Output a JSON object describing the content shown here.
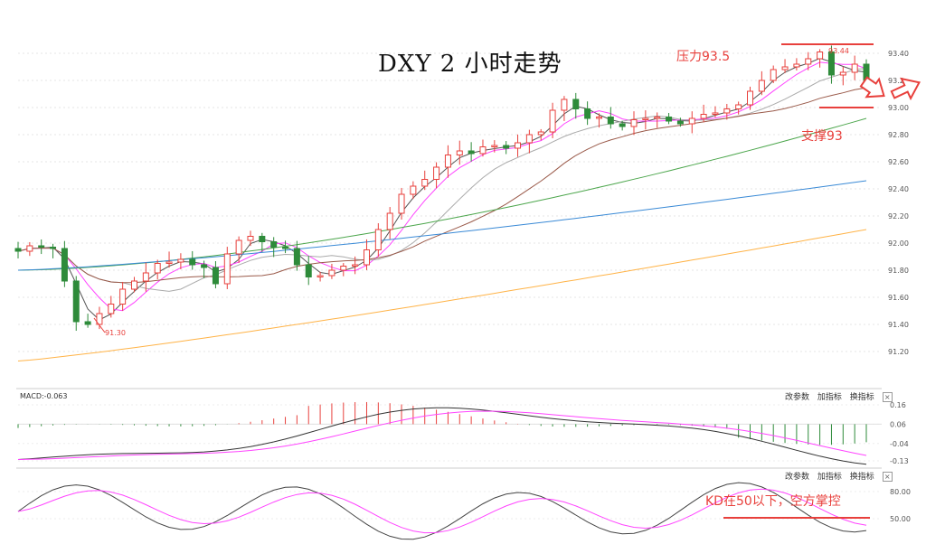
{
  "title": "DXY 2 小时走势",
  "annotations": {
    "resistance": "压力93.5",
    "support": "支撑93",
    "kd_note": "KD在50以下，空方掌控",
    "high_marker": "93.44",
    "low_marker": "91.30"
  },
  "macd_panel": {
    "label": "MACD:-0.063",
    "buttons": [
      "改参数",
      "加指标",
      "换指标"
    ],
    "close": "×",
    "ticks": [
      "0.16",
      "0.06",
      "-0.04",
      "-0.13"
    ]
  },
  "kd_panel": {
    "buttons": [
      "改参数",
      "加指标",
      "换指标"
    ],
    "close": "×",
    "ticks": [
      "80.00",
      "50.00"
    ]
  },
  "colors": {
    "up": "#e8403c",
    "down": "#2e8b3a",
    "ma_black": "#555555",
    "ma_pink": "#ff44ff",
    "ma_gray": "#aaaaaa",
    "ma_brown": "#9a5a4a",
    "ma_green": "#4ca64c",
    "ma_blue": "#3a8ad6",
    "ma_orange": "#ffb347",
    "annotation": "#e8403c"
  },
  "chart_data": [
    {
      "type": "candlestick",
      "title": "DXY 2 小时走势",
      "y_ticks": [
        "93.40",
        "93.2",
        "93.00",
        "92.80",
        "92.60",
        "92.40",
        "92.20",
        "92.00",
        "91.80",
        "91.60",
        "91.40",
        "91.20"
      ],
      "ylim": [
        91.0,
        93.5
      ],
      "key_levels": {
        "resistance": 93.5,
        "support": 93.0,
        "high": 93.44,
        "low": 91.3
      },
      "close_path": [
        91.94,
        91.98,
        91.97,
        91.96,
        91.72,
        91.42,
        91.4,
        91.48,
        91.55,
        91.66,
        91.72,
        91.78,
        91.85,
        91.86,
        91.88,
        91.84,
        91.82,
        91.7,
        91.92,
        92.02,
        92.05,
        92.01,
        91.97,
        91.96,
        91.84,
        91.75,
        91.76,
        91.8,
        91.83,
        91.84,
        91.95,
        92.1,
        92.22,
        92.36,
        92.42,
        92.47,
        92.56,
        92.65,
        92.68,
        92.66,
        92.71,
        92.72,
        92.7,
        92.74,
        92.8,
        92.82,
        92.98,
        93.06,
        92.99,
        92.92,
        92.93,
        92.88,
        92.86,
        92.91,
        92.92,
        92.93,
        92.9,
        92.88,
        92.92,
        92.95,
        92.96,
        92.99,
        93.02,
        93.12,
        93.2,
        93.28,
        93.3,
        93.32,
        93.36,
        93.41,
        93.24,
        93.26,
        93.32,
        93.2
      ]
    },
    {
      "type": "macd",
      "ticks": [
        0.16,
        0.06,
        -0.04,
        -0.13
      ],
      "ylim": [
        -0.16,
        0.2
      ]
    },
    {
      "type": "kd",
      "ticks": [
        80.0,
        50.0
      ],
      "ylim": [
        20,
        100
      ]
    }
  ]
}
